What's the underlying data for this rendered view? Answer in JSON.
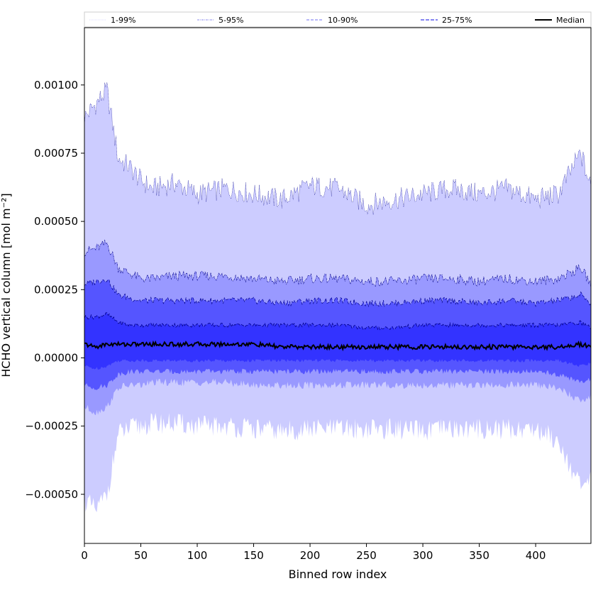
{
  "chart_data": {
    "type": "area",
    "xlabel": "Binned row index",
    "ylabel": "HCHO vertical column [mol m⁻²]",
    "xlim": [
      0,
      449
    ],
    "ylim": [
      -0.00068,
      0.00121
    ],
    "x_ticks": [
      0,
      50,
      100,
      150,
      200,
      250,
      300,
      350,
      400
    ],
    "x_tick_labels": [
      "0",
      "50",
      "100",
      "150",
      "200",
      "250",
      "300",
      "350",
      "400"
    ],
    "y_ticks": [
      -0.0005,
      -0.00025,
      0.0,
      0.00025,
      0.0005,
      0.00075,
      0.001
    ],
    "y_tick_labels": [
      "−0.00050",
      "−0.00025",
      "0.00000",
      "0.00025",
      "0.00050",
      "0.00075",
      "0.00100"
    ],
    "grid": false,
    "legend_position": "top",
    "x": [
      0,
      10,
      20,
      30,
      40,
      50,
      60,
      80,
      100,
      125,
      150,
      175,
      200,
      225,
      250,
      275,
      300,
      325,
      350,
      375,
      400,
      420,
      440,
      449
    ],
    "series": [
      {
        "name": "1-99%",
        "lower": [
          -0.00052,
          -0.00056,
          -0.0005,
          -0.00028,
          -0.00026,
          -0.00025,
          -0.00024,
          -0.00024,
          -0.00025,
          -0.00025,
          -0.00026,
          -0.00027,
          -0.00026,
          -0.00026,
          -0.00026,
          -0.00026,
          -0.00027,
          -0.00026,
          -0.00026,
          -0.00026,
          -0.00026,
          -0.0003,
          -0.00048,
          -0.00045
        ],
        "upper": [
          0.00088,
          0.00093,
          0.00098,
          0.00073,
          0.0007,
          0.00065,
          0.00062,
          0.00064,
          0.0006,
          0.00062,
          0.0006,
          0.00058,
          0.00063,
          0.00062,
          0.00056,
          0.00058,
          0.0006,
          0.00062,
          0.0006,
          0.00062,
          0.00058,
          0.0006,
          0.00075,
          0.00062
        ]
      },
      {
        "name": "5-95%",
        "lower": [
          -0.00018,
          -0.0002,
          -0.00018,
          -0.00011,
          -0.0001,
          -0.0001,
          -9e-05,
          -9e-05,
          -9e-05,
          -9e-05,
          -0.0001,
          -0.0001,
          -0.0001,
          -0.0001,
          -0.0001,
          -0.0001,
          -0.0001,
          -0.0001,
          -0.0001,
          -0.0001,
          -0.0001,
          -0.00011,
          -0.00016,
          -0.00014
        ],
        "upper": [
          0.00039,
          0.0004,
          0.00042,
          0.00033,
          0.00031,
          0.00029,
          0.00029,
          0.0003,
          0.0003,
          0.0003,
          0.00029,
          0.00028,
          0.00029,
          0.00029,
          0.00028,
          0.00028,
          0.00029,
          0.00029,
          0.00028,
          0.00029,
          0.00028,
          0.00029,
          0.00033,
          0.00027
        ]
      },
      {
        "name": "10-90%",
        "lower": [
          -0.0001,
          -0.00011,
          -0.0001,
          -6e-05,
          -5e-05,
          -5e-05,
          -5e-05,
          -5e-05,
          -5e-05,
          -5e-05,
          -5e-05,
          -5e-05,
          -5e-05,
          -5e-05,
          -5e-05,
          -5e-05,
          -5e-05,
          -5e-05,
          -5e-05,
          -5e-05,
          -5e-05,
          -6e-05,
          -9e-05,
          -8e-05
        ],
        "upper": [
          0.00027,
          0.00028,
          0.00029,
          0.00023,
          0.00022,
          0.00021,
          0.00021,
          0.00021,
          0.00021,
          0.00021,
          0.00021,
          0.0002,
          0.00021,
          0.00021,
          0.0002,
          0.0002,
          0.00021,
          0.00021,
          0.0002,
          0.00021,
          0.0002,
          0.00021,
          0.00023,
          0.0002
        ]
      },
      {
        "name": "25-75%",
        "lower": [
          -3e-05,
          -4e-05,
          -3e-05,
          -1e-05,
          -1e-05,
          -1e-05,
          -1e-05,
          -1e-05,
          -1e-05,
          -1e-05,
          -1e-05,
          -1e-05,
          -1e-05,
          -1e-05,
          -1e-05,
          -1e-05,
          -1e-05,
          -1e-05,
          -1e-05,
          -1e-05,
          -1e-05,
          -1e-05,
          -3e-05,
          -2e-05
        ],
        "upper": [
          0.00015,
          0.00015,
          0.00016,
          0.00013,
          0.00012,
          0.00012,
          0.00012,
          0.00012,
          0.00012,
          0.00012,
          0.00012,
          0.00012,
          0.00012,
          0.00012,
          0.00011,
          0.00011,
          0.00012,
          0.00012,
          0.00012,
          0.00012,
          0.00012,
          0.00012,
          0.00013,
          0.00011
        ]
      },
      {
        "name": "Median",
        "values": [
          5e-05,
          4e-05,
          5e-05,
          5e-05,
          5e-05,
          5e-05,
          5e-05,
          5e-05,
          5e-05,
          5e-05,
          5e-05,
          4e-05,
          4e-05,
          4e-05,
          4e-05,
          4e-05,
          4e-05,
          4e-05,
          4e-05,
          4e-05,
          4e-05,
          4e-05,
          5e-05,
          4e-05
        ]
      }
    ],
    "legend": [
      {
        "label": "1-99%",
        "style": "dotted",
        "color": "#cfcfff"
      },
      {
        "label": "5-95%",
        "style": "dashdot",
        "color": "#7777ee"
      },
      {
        "label": "10-90%",
        "style": "dashed",
        "color": "#5555f0"
      },
      {
        "label": "25-75%",
        "style": "dashed",
        "color": "#2222dd"
      },
      {
        "label": "Median",
        "style": "solid",
        "color": "#000000"
      }
    ],
    "colors": {
      "band_1_99": "#ccccff",
      "band_5_95": "#9999ff",
      "band_10_90": "#5555ff",
      "band_25_75": "#3333ff",
      "edge": "#00008b",
      "median": "#000000"
    }
  }
}
